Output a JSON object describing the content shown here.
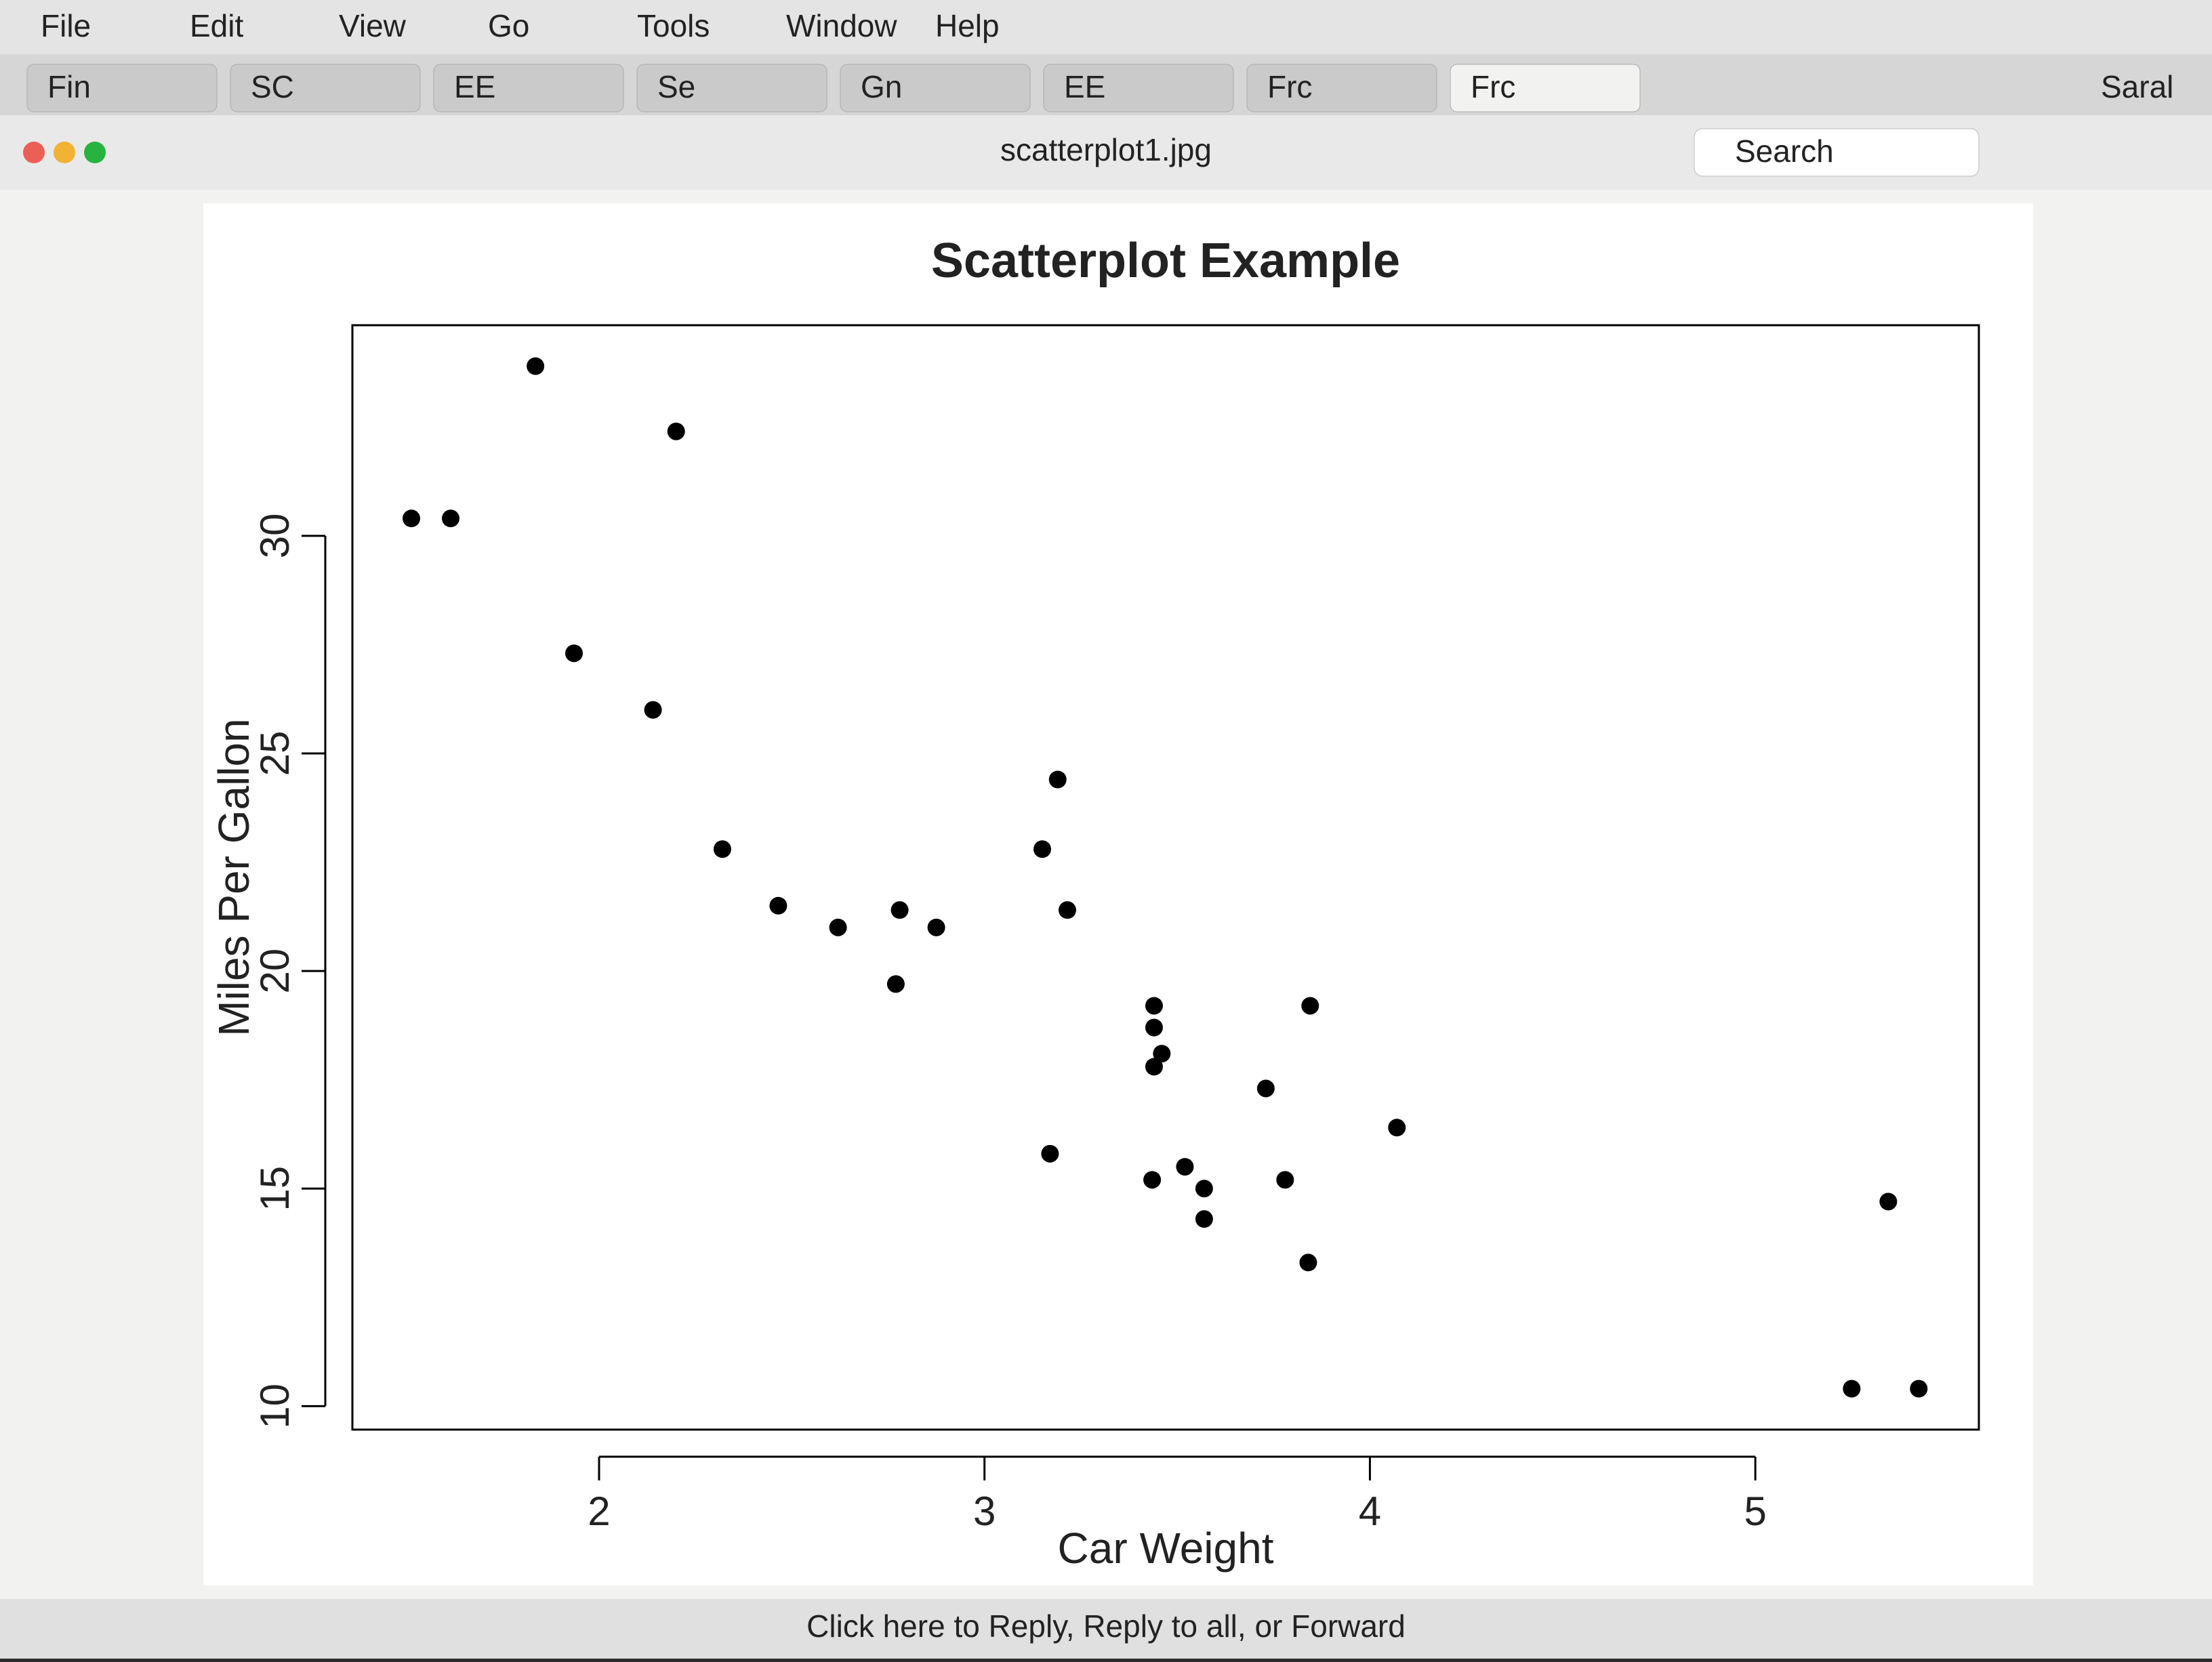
{
  "ui": {
    "menu": [
      "File",
      "Edit",
      "View",
      "Go",
      "Tools",
      "Window",
      "Help"
    ],
    "tabs": [
      "Fin",
      "SC",
      "EE",
      "Se",
      "Gn",
      "EE",
      "Frc",
      "Frc"
    ],
    "filename": "scatterplot1.jpg",
    "search": "Search",
    "user": "Saral",
    "footer": "Click here to Reply, Reply to all, or Forward"
  },
  "chart_data": {
    "type": "scatter",
    "title": "Scatterplot Example",
    "x_label": "Car Weight",
    "y_label": "Miles Per Gallon",
    "color": "#000000",
    "x": [
      2.62,
      2.875,
      2.32,
      3.215,
      3.44,
      3.46,
      3.57,
      3.19,
      3.15,
      3.44,
      3.44,
      4.07,
      3.73,
      3.78,
      5.25,
      5.424,
      5.345,
      2.2,
      1.615,
      1.835,
      2.465,
      3.52,
      3.435,
      3.84,
      3.845,
      1.935,
      2.14,
      1.513,
      3.17,
      2.77,
      3.57,
      2.78
    ],
    "values": [
      21.0,
      21.0,
      22.8,
      21.4,
      18.7,
      18.1,
      14.3,
      24.4,
      22.8,
      19.2,
      17.8,
      16.4,
      17.3,
      15.2,
      10.4,
      10.4,
      14.7,
      32.4,
      30.4,
      33.9,
      21.5,
      15.5,
      15.2,
      13.3,
      19.2,
      27.3,
      26.0,
      30.4,
      15.8,
      19.7,
      15.0,
      21.4
    ],
    "xlim": [
      1.36,
      5.58
    ],
    "ylim": [
      9.46,
      34.84
    ],
    "xticks": [
      2,
      3,
      4,
      5
    ],
    "yticks": [
      10,
      15,
      20,
      25,
      30
    ],
    "grid": false
  }
}
